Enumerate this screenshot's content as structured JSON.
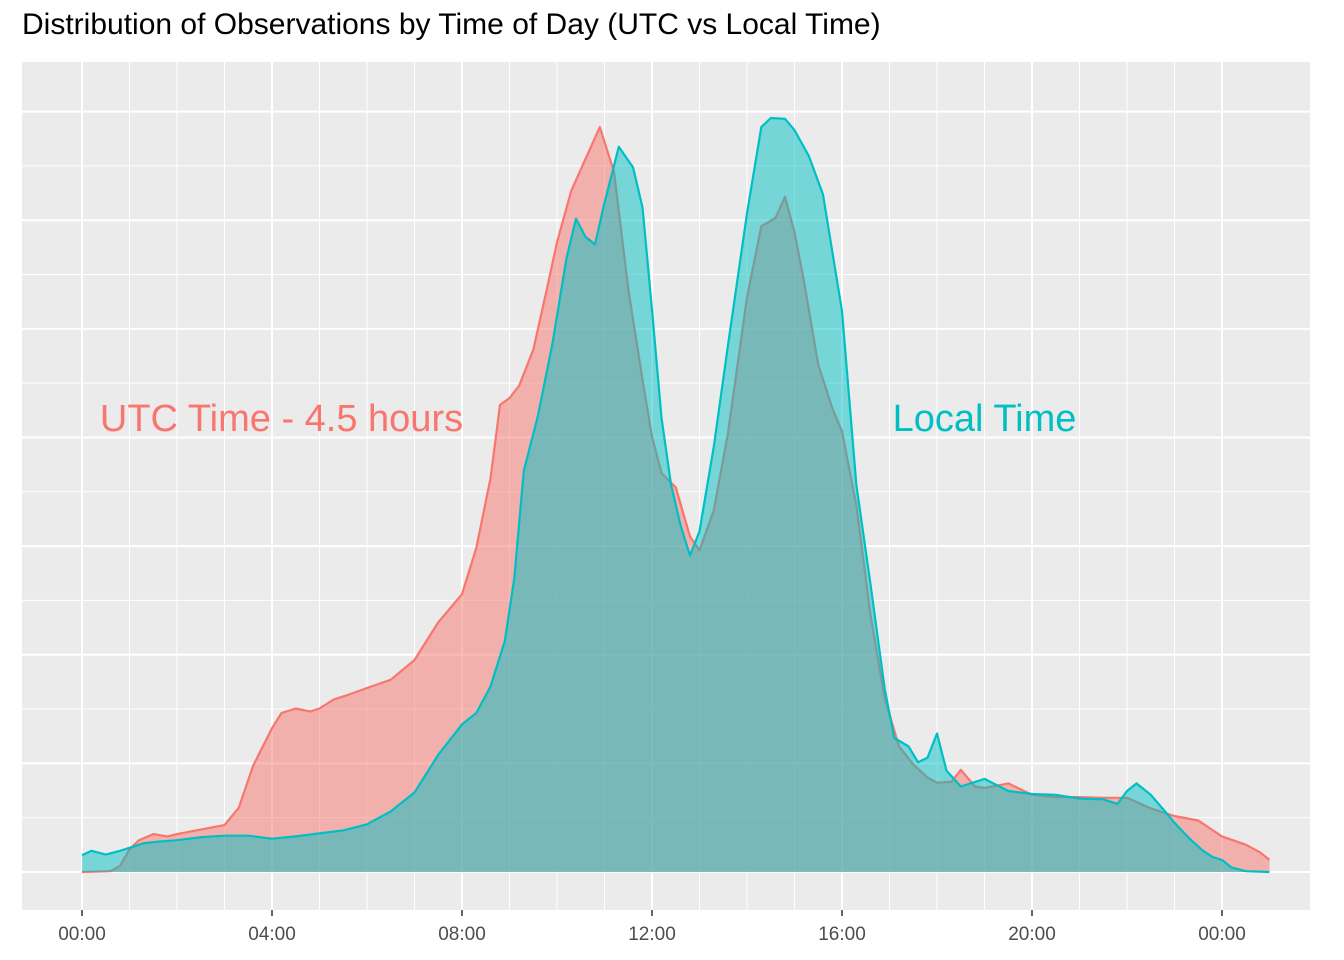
{
  "chart_data": {
    "type": "area",
    "title": "Distribution of Observations by Time of Day (UTC vs Local Time)",
    "xlabel": "",
    "ylabel": "",
    "x_unit": "hours since 00:00",
    "xlim": [
      -0.5,
      25.8
    ],
    "ylim": [
      0,
      1.05
    ],
    "grid": true,
    "legend": "none",
    "x_ticks": [
      {
        "value": 0,
        "label": "00:00"
      },
      {
        "value": 4,
        "label": "04:00"
      },
      {
        "value": 8,
        "label": "08:00"
      },
      {
        "value": 12,
        "label": "12:00"
      },
      {
        "value": 16,
        "label": "16:00"
      },
      {
        "value": 20,
        "label": "20:00"
      },
      {
        "value": 24,
        "label": "00:00"
      }
    ],
    "annotations": [
      {
        "text": "UTC Time - 4.5 hours",
        "x": 4.2,
        "y": 0.6,
        "color": "#F8766D"
      },
      {
        "text": "Local Time",
        "x": 19.0,
        "y": 0.6,
        "color": "#00BFC4"
      }
    ],
    "series": [
      {
        "color": "#F8766D",
        "x": [
          0,
          0.6,
          0.8,
          1.0,
          1.2,
          1.5,
          1.8,
          2.0,
          2.5,
          3.0,
          3.3,
          3.6,
          4.0,
          4.2,
          4.5,
          4.8,
          5.0,
          5.3,
          5.6,
          6.0,
          6.5,
          7.0,
          7.5,
          8.0,
          8.3,
          8.6,
          8.8,
          9.0,
          9.2,
          9.5,
          9.8,
          10.0,
          10.3,
          10.6,
          10.9,
          11.2,
          11.5,
          11.8,
          12.0,
          12.2,
          12.5,
          12.8,
          13.0,
          13.3,
          13.6,
          14.0,
          14.3,
          14.6,
          14.8,
          15.0,
          15.2,
          15.5,
          15.8,
          16.0,
          16.3,
          16.6,
          16.9,
          17.2,
          17.5,
          17.8,
          18.0,
          18.3,
          18.5,
          18.8,
          19.0,
          19.5,
          20.0,
          20.5,
          21.0,
          21.5,
          22.0,
          22.5,
          23.0,
          23.5,
          24.0,
          24.5,
          24.8,
          25.0
        ],
        "y": [
          0.0,
          0.001,
          0.008,
          0.03,
          0.042,
          0.05,
          0.047,
          0.05,
          0.056,
          0.062,
          0.085,
          0.14,
          0.19,
          0.21,
          0.216,
          0.212,
          0.216,
          0.228,
          0.234,
          0.243,
          0.254,
          0.28,
          0.33,
          0.367,
          0.428,
          0.52,
          0.617,
          0.626,
          0.642,
          0.69,
          0.774,
          0.832,
          0.9,
          0.942,
          0.984,
          0.925,
          0.77,
          0.65,
          0.575,
          0.527,
          0.508,
          0.443,
          0.425,
          0.478,
          0.58,
          0.759,
          0.853,
          0.864,
          0.892,
          0.845,
          0.78,
          0.67,
          0.612,
          0.582,
          0.485,
          0.34,
          0.229,
          0.166,
          0.142,
          0.125,
          0.118,
          0.119,
          0.135,
          0.113,
          0.111,
          0.117,
          0.102,
          0.099,
          0.099,
          0.098,
          0.098,
          0.084,
          0.074,
          0.068,
          0.047,
          0.036,
          0.026,
          0.016
        ]
      },
      {
        "color": "#00BFC4",
        "x": [
          0,
          0.2,
          0.5,
          0.8,
          1.0,
          1.3,
          1.6,
          2.0,
          2.5,
          3.0,
          3.5,
          4.0,
          4.5,
          5.0,
          5.5,
          6.0,
          6.5,
          7.0,
          7.5,
          8.0,
          8.3,
          8.6,
          8.9,
          9.1,
          9.3,
          9.6,
          9.9,
          10.2,
          10.4,
          10.6,
          10.8,
          11.0,
          11.3,
          11.6,
          11.8,
          12.0,
          12.2,
          12.4,
          12.6,
          12.8,
          13.0,
          13.3,
          13.6,
          14.0,
          14.3,
          14.5,
          14.8,
          15.0,
          15.3,
          15.6,
          16.0,
          16.3,
          16.6,
          16.9,
          17.1,
          17.4,
          17.6,
          17.8,
          18.0,
          18.2,
          18.5,
          19.0,
          19.5,
          20.0,
          20.5,
          21.0,
          21.5,
          21.8,
          22.0,
          22.2,
          22.5,
          22.8,
          23.0,
          23.3,
          23.6,
          23.8,
          24.0,
          24.2,
          24.5,
          25.0
        ],
        "y": [
          0.022,
          0.028,
          0.023,
          0.028,
          0.032,
          0.038,
          0.04,
          0.042,
          0.046,
          0.048,
          0.048,
          0.044,
          0.047,
          0.051,
          0.055,
          0.063,
          0.08,
          0.105,
          0.155,
          0.195,
          0.21,
          0.245,
          0.305,
          0.388,
          0.53,
          0.603,
          0.697,
          0.811,
          0.863,
          0.839,
          0.829,
          0.884,
          0.958,
          0.931,
          0.878,
          0.743,
          0.6,
          0.512,
          0.458,
          0.418,
          0.45,
          0.562,
          0.696,
          0.87,
          0.984,
          0.996,
          0.995,
          0.98,
          0.946,
          0.895,
          0.741,
          0.512,
          0.38,
          0.242,
          0.177,
          0.166,
          0.145,
          0.151,
          0.183,
          0.134,
          0.113,
          0.123,
          0.107,
          0.103,
          0.102,
          0.097,
          0.096,
          0.09,
          0.107,
          0.117,
          0.102,
          0.08,
          0.065,
          0.045,
          0.028,
          0.02,
          0.016,
          0.006,
          0.001,
          0.0
        ]
      }
    ]
  }
}
